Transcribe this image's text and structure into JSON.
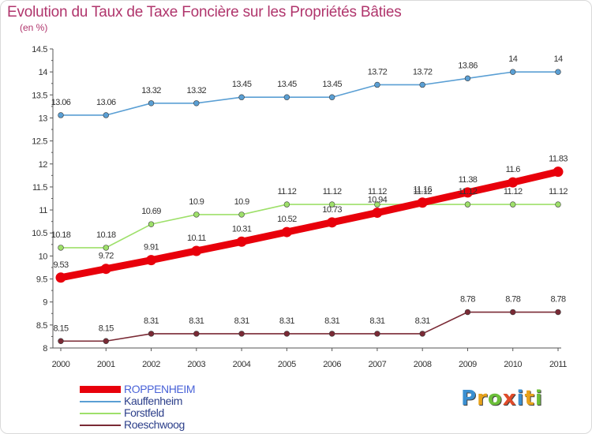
{
  "title": "Evolution du Taux de Taxe Foncière sur les Propriétés Bâties",
  "subtitle": "(en %)",
  "logo": {
    "text": "Proxiti",
    "letters": [
      {
        "ch": "P",
        "color": "#3a8fd1"
      },
      {
        "ch": "r",
        "color": "#e8a21a"
      },
      {
        "ch": "o",
        "color": "#6cbf3a"
      },
      {
        "ch": "x",
        "color": "#e04b2a"
      },
      {
        "ch": "i",
        "color": "#3a8fd1"
      },
      {
        "ch": "t",
        "color": "#e8a21a"
      },
      {
        "ch": "i",
        "color": "#6cbf3a"
      }
    ]
  },
  "chart_data": {
    "type": "line",
    "title": "Evolution du Taux de Taxe Foncière sur les Propriétés Bâties",
    "subtitle": "(en %)",
    "x": [
      "2000",
      "2001",
      "2002",
      "2003",
      "2004",
      "2005",
      "2006",
      "2007",
      "2008",
      "2009",
      "2010",
      "2011"
    ],
    "ylim": [
      8,
      14.5
    ],
    "yticks": [
      "8",
      "8.5",
      "9",
      "9.5",
      "10",
      "10.5",
      "11",
      "11.5",
      "12",
      "12.5",
      "13",
      "13.5",
      "14",
      "14.5"
    ],
    "grid": false,
    "legend_position": "bottom-left",
    "series": [
      {
        "name": "ROPPENHEIM",
        "color": "#e8000b",
        "values": [
          9.53,
          9.72,
          9.91,
          10.11,
          10.31,
          10.52,
          10.73,
          10.94,
          11.16,
          11.38,
          11.6,
          11.83
        ],
        "labels": [
          "9.53",
          "9.72",
          "9.91",
          "10.11",
          "10.31",
          "10.52",
          "10.73",
          "10.94",
          "11.16",
          "11.38",
          "11.6",
          "11.83"
        ]
      },
      {
        "name": "Kauffenheim",
        "color": "#5a9fd4",
        "values": [
          13.06,
          13.06,
          13.32,
          13.32,
          13.45,
          13.45,
          13.45,
          13.72,
          13.72,
          13.86,
          14,
          14
        ],
        "labels": [
          "13.06",
          "13.06",
          "13.32",
          "13.32",
          "13.45",
          "13.45",
          "13.45",
          "13.72",
          "13.72",
          "13.86",
          "14",
          "14"
        ]
      },
      {
        "name": "Forstfeld",
        "color": "#9ee06a",
        "values": [
          10.18,
          10.18,
          10.69,
          10.9,
          10.9,
          11.12,
          11.12,
          11.12,
          11.12,
          11.12,
          11.12,
          11.12
        ],
        "labels": [
          "10.18",
          "10.18",
          "10.69",
          "10.9",
          "10.9",
          "11.12",
          "11.12",
          "11.12",
          "11.12",
          "11.12",
          "11.12",
          "11.12"
        ]
      },
      {
        "name": "Roeschwoog",
        "color": "#7a2a35",
        "values": [
          8.15,
          8.15,
          8.31,
          8.31,
          8.31,
          8.31,
          8.31,
          8.31,
          8.31,
          8.78,
          8.78,
          8.78
        ],
        "labels": [
          "8.15",
          "8.15",
          "8.31",
          "8.31",
          "8.31",
          "8.31",
          "8.31",
          "8.31",
          "8.31",
          "8.78",
          "8.78",
          "8.78"
        ]
      }
    ]
  }
}
